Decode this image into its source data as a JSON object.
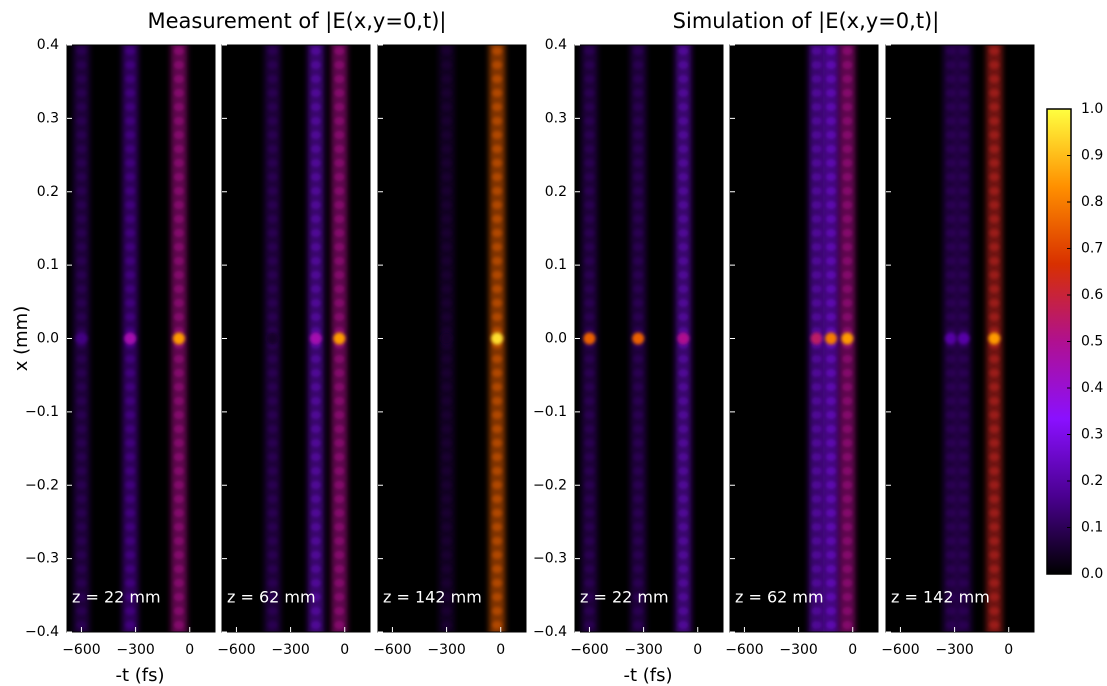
{
  "chart_data": [
    {
      "type": "heatmap",
      "title": "Measurement of |E(x,y=0,t)|",
      "xlabel": "-t (fs)",
      "ylabel": "x (mm)",
      "xlim": [
        -680,
        140
      ],
      "xticks": [
        {
          "value": -600,
          "label": "−600"
        },
        {
          "value": -300,
          "label": "−300"
        },
        0
      ],
      "ylim": [
        -0.4,
        0.4
      ],
      "yticks": [
        {
          "value": -0.4,
          "label": "−0.4"
        },
        {
          "value": -0.3,
          "label": "−0.3"
        },
        {
          "value": -0.2,
          "label": "−0.2"
        },
        {
          "value": -0.1,
          "label": "−0.1"
        },
        {
          "value": 0,
          "label": "0.0"
        },
        0.1,
        0.2,
        0.3,
        0.4
      ],
      "panels": [
        {
          "label": "z = 22 mm",
          "pulses": [
            {
              "t": -600,
              "peak": 0.15,
              "stripe": 0.05
            },
            {
              "t": -330,
              "peak": 0.45,
              "stripe": 0.08
            },
            {
              "t": -60,
              "peak": 0.85,
              "stripe": 0.2
            }
          ]
        },
        {
          "label": "z = 62 mm",
          "pulses": [
            {
              "t": -400,
              "peak": 0.05,
              "stripe": 0.05
            },
            {
              "t": -160,
              "peak": 0.45,
              "stripe": 0.1
            },
            {
              "t": -30,
              "peak": 0.85,
              "stripe": 0.2
            }
          ]
        },
        {
          "label": "z = 142 mm",
          "pulses": [
            {
              "t": -300,
              "peak": 0.05,
              "stripe": 0.03
            },
            {
              "t": -20,
              "peak": 0.95,
              "stripe": 0.3
            }
          ]
        }
      ]
    },
    {
      "type": "heatmap",
      "title": "Simulation of |E(x,y=0,t)|",
      "xlabel": "-t (fs)",
      "xlim": [
        -680,
        140
      ],
      "xticks": [
        {
          "value": -600,
          "label": "−600"
        },
        {
          "value": -300,
          "label": "−300"
        },
        0
      ],
      "ylim": [
        -0.4,
        0.4
      ],
      "yticks": [
        {
          "value": -0.4,
          "label": "−0.4"
        },
        {
          "value": -0.3,
          "label": "−0.3"
        },
        {
          "value": -0.2,
          "label": "−0.2"
        },
        {
          "value": -0.1,
          "label": "−0.1"
        },
        {
          "value": 0,
          "label": "0.0"
        },
        0.1,
        0.2,
        0.3,
        0.4
      ],
      "panels": [
        {
          "label": "z = 22 mm",
          "pulses": [
            {
              "t": -600,
              "peak": 0.75,
              "stripe": 0.05
            },
            {
              "t": -330,
              "peak": 0.75,
              "stripe": 0.05
            },
            {
              "t": -80,
              "peak": 0.5,
              "stripe": 0.1
            }
          ]
        },
        {
          "label": "z = 62 mm",
          "pulses": [
            {
              "t": -200,
              "peak": 0.55,
              "stripe": 0.1
            },
            {
              "t": -120,
              "peak": 0.8,
              "stripe": 0.12
            },
            {
              "t": -30,
              "peak": 0.85,
              "stripe": 0.2
            }
          ]
        },
        {
          "label": "z = 142 mm",
          "pulses": [
            {
              "t": -320,
              "peak": 0.2,
              "stripe": 0.05
            },
            {
              "t": -250,
              "peak": 0.2,
              "stripe": 0.05
            },
            {
              "t": -80,
              "peak": 0.85,
              "stripe": 0.25
            }
          ]
        }
      ],
      "colormap": [
        "#000000",
        "#4a0090",
        "#8a10ff",
        "#b01090",
        "#d83000",
        "#ff9000",
        "#ffff40"
      ],
      "colorbar": {
        "lim": [
          0,
          1
        ],
        "ticks": [
          {
            "value": 0,
            "label": "0.0"
          },
          0.1,
          0.2,
          0.3,
          0.4,
          0.5,
          0.6,
          0.7,
          0.8,
          0.9,
          {
            "value": 1,
            "label": "1.0"
          }
        ]
      }
    }
  ]
}
